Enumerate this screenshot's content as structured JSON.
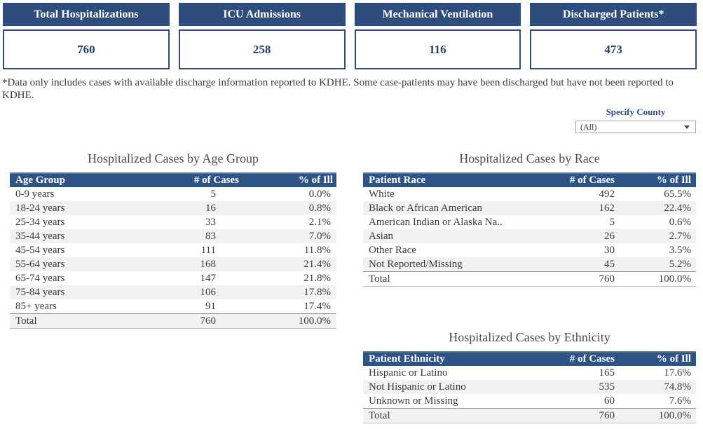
{
  "colors": {
    "card_header_bg": "#2e4d7c",
    "table_header_bg": "#2e5486",
    "value_text": "#24406e",
    "zebra_stripe": "#f2f2f2",
    "body_text": "#3a3a3a"
  },
  "icons": {
    "county_dropdown": "caret-down"
  },
  "cards": [
    {
      "label": "Total Hospitalizations",
      "value": "760"
    },
    {
      "label": "ICU Admissions",
      "value": "258"
    },
    {
      "label": "Mechanical Ventilation",
      "value": "116"
    },
    {
      "label": "Discharged Patients*",
      "value": "473"
    }
  ],
  "footnote": "*Data only includes cases with available discharge information reported to KDHE. Some case-patients may have been discharged but have not been reported to KDHE.",
  "county_filter": {
    "label": "Specify County",
    "selected": "(All)"
  },
  "tables": {
    "age": {
      "title": "Hospitalized Cases by Age Group",
      "columns": [
        "Age Group",
        "# of Cases",
        "% of Ill"
      ],
      "rows": [
        [
          "0-9 years",
          "5",
          "0.0%"
        ],
        [
          "18-24 years",
          "16",
          "0.8%"
        ],
        [
          "25-34 years",
          "33",
          "2.1%"
        ],
        [
          "35-44 years",
          "83",
          "7.0%"
        ],
        [
          "45-54 years",
          "111",
          "11.8%"
        ],
        [
          "55-64 years",
          "168",
          "21.4%"
        ],
        [
          "65-74 years",
          "147",
          "21.8%"
        ],
        [
          "75-84 years",
          "106",
          "17.8%"
        ],
        [
          "85+ years",
          "91",
          "17.4%"
        ]
      ],
      "total": [
        "Total",
        "760",
        "100.0%"
      ]
    },
    "race": {
      "title": "Hospitalized Cases by Race",
      "columns": [
        "Patient Race",
        "# of Cases",
        "% of Ill"
      ],
      "rows": [
        [
          "White",
          "492",
          "65.5%"
        ],
        [
          "Black or African American",
          "162",
          "22.4%"
        ],
        [
          "American Indian or Alaska Na..",
          "5",
          "0.6%"
        ],
        [
          "Asian",
          "26",
          "2.7%"
        ],
        [
          "Other Race",
          "30",
          "3.5%"
        ],
        [
          "Not Reported/Missing",
          "45",
          "5.2%"
        ]
      ],
      "total": [
        "Total",
        "760",
        "100.0%"
      ]
    },
    "ethnicity": {
      "title": "Hospitalized Cases by Ethnicity",
      "columns": [
        "Patient Ethnicity",
        "# of Cases",
        "% of Ill"
      ],
      "rows": [
        [
          "Hispanic or Latino",
          "165",
          "17.6%"
        ],
        [
          "Not Hispanic or Latino",
          "535",
          "74.8%"
        ],
        [
          "Unknown or Missing",
          "60",
          "7.6%"
        ]
      ],
      "total": [
        "Total",
        "760",
        "100.0%"
      ]
    }
  }
}
